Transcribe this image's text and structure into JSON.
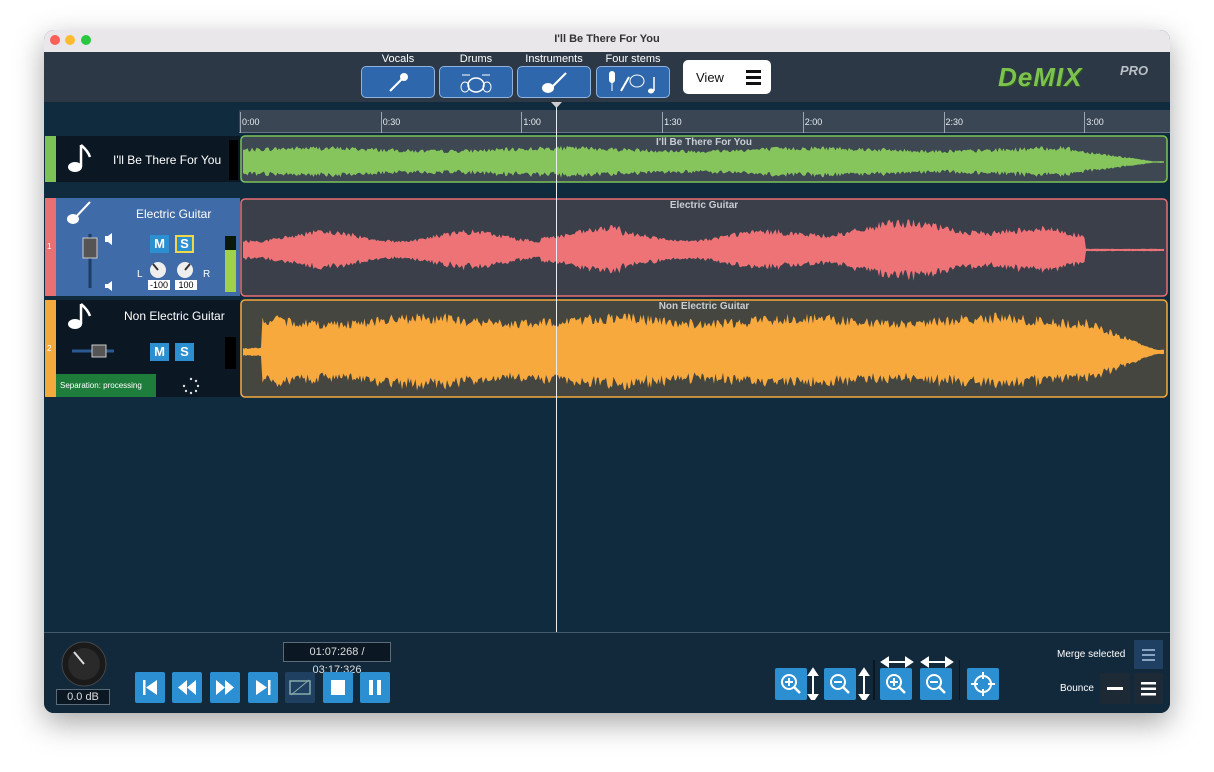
{
  "window": {
    "title": "I'll Be There For You"
  },
  "toolbar": {
    "stems": [
      "Vocals",
      "Drums",
      "Instruments",
      "Four stems"
    ],
    "view": "View",
    "logo": "DeMIX",
    "logo_suffix": "PRO"
  },
  "timeline": {
    "labels": [
      "0:00",
      "0:30",
      "1:00",
      "1:30",
      "2:00",
      "2:30",
      "3:00"
    ]
  },
  "tracks": [
    {
      "name": "I'll Be There For You",
      "waveform_label": "I'll Be There For You"
    },
    {
      "number": 1,
      "name": "Electric Guitar",
      "waveform_label": "Electric Guitar",
      "mute": "M",
      "solo": "S",
      "pan_left": "L",
      "pan_right": "R",
      "left_value": -100,
      "right_value": 100
    },
    {
      "number": 2,
      "name": "Non Electric Guitar",
      "waveform_label": "Non Electric Guitar",
      "mute": "M",
      "solo": "S",
      "status": "Separation: processing"
    }
  ],
  "transport": {
    "time": "01:07:268 / 03:17:326",
    "volume": "0.0 dB"
  },
  "actions": {
    "merge": "Merge selected",
    "bounce": "Bounce"
  }
}
